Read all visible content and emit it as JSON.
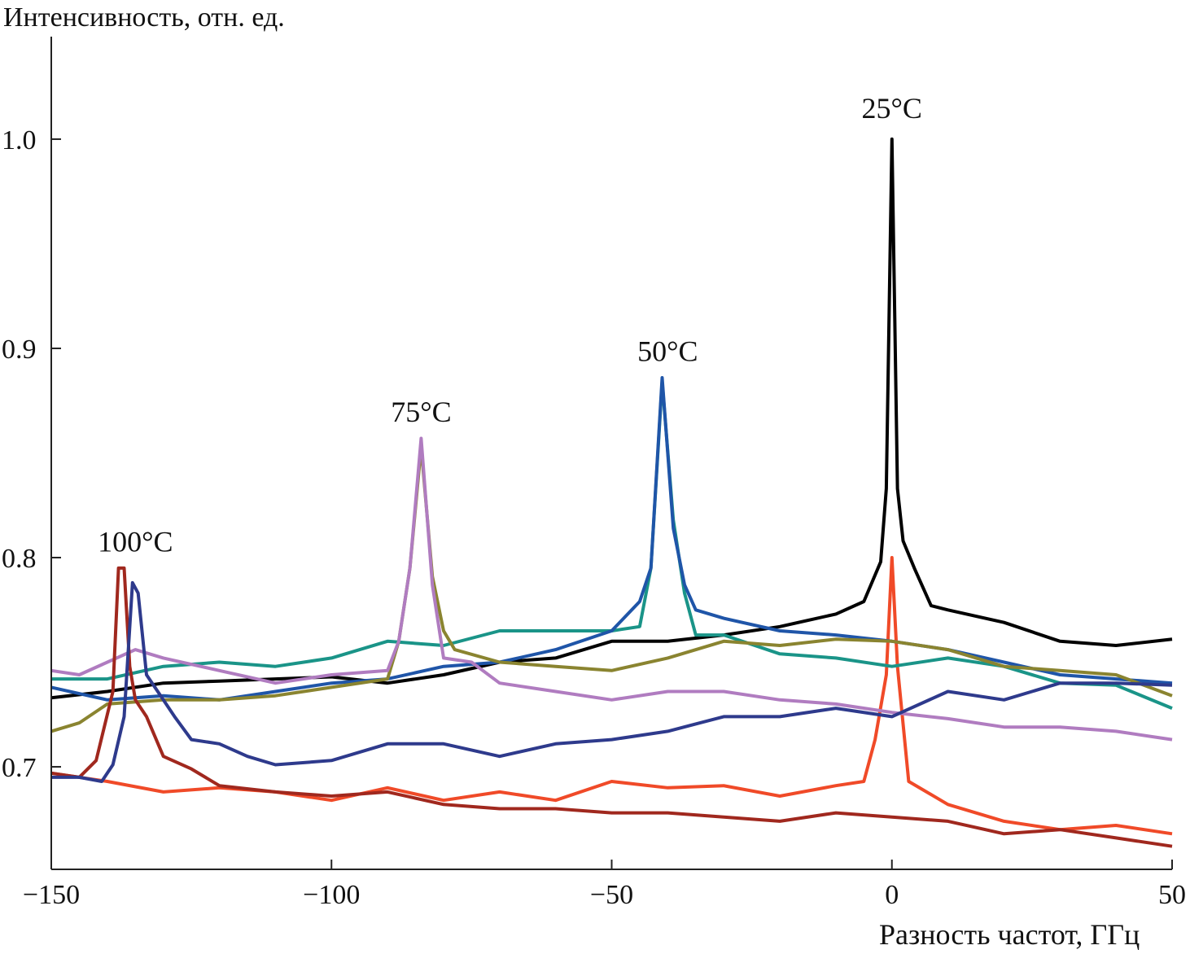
{
  "chart_data": {
    "type": "line",
    "title": "",
    "xlabel": "Разность частот, ГГц",
    "ylabel": "Интенсивность, отн. ед.",
    "xlim": [
      -150,
      50
    ],
    "ylim": [
      0.651,
      1.049
    ],
    "x_ticks": [
      -150,
      -100,
      -50,
      0,
      50
    ],
    "x_tick_labels": [
      "−150",
      "−100",
      "−50",
      "0",
      "50"
    ],
    "y_ticks": [
      0.7,
      0.8,
      0.9,
      1.0
    ],
    "y_tick_labels": [
      "0.7",
      "0.8",
      "0.9",
      "1.0"
    ],
    "grid": false,
    "annotations": [
      {
        "text": "100°C",
        "x": -135,
        "y": 0.803
      },
      {
        "text": "75°C",
        "x": -84,
        "y": 0.865
      },
      {
        "text": "50°C",
        "x": -40,
        "y": 0.894
      },
      {
        "text": "25°C",
        "x": 0,
        "y": 1.01
      }
    ],
    "series": [
      {
        "name": "25°C a",
        "color": "#000000",
        "x": [
          -150,
          -140,
          -130,
          -120,
          -110,
          -100,
          -90,
          -80,
          -70,
          -60,
          -50,
          -40,
          -30,
          -20,
          -10,
          -5,
          -2,
          -1,
          0,
          1,
          2,
          4,
          7,
          10,
          20,
          30,
          40,
          50
        ],
        "y": [
          0.733,
          0.736,
          0.74,
          0.741,
          0.742,
          0.743,
          0.74,
          0.744,
          0.75,
          0.752,
          0.76,
          0.76,
          0.763,
          0.767,
          0.773,
          0.779,
          0.798,
          0.833,
          1.0,
          0.833,
          0.808,
          0.795,
          0.777,
          0.775,
          0.769,
          0.76,
          0.758,
          0.761
        ]
      },
      {
        "name": "25°C b",
        "color": "#f04a28",
        "x": [
          -150,
          -140,
          -130,
          -120,
          -110,
          -100,
          -90,
          -80,
          -70,
          -60,
          -50,
          -40,
          -30,
          -20,
          -10,
          -5,
          -3,
          -1,
          0,
          1,
          3,
          10,
          20,
          30,
          40,
          50
        ],
        "y": [
          0.697,
          0.693,
          0.688,
          0.69,
          0.688,
          0.684,
          0.69,
          0.684,
          0.688,
          0.684,
          0.693,
          0.69,
          0.691,
          0.686,
          0.691,
          0.693,
          0.713,
          0.744,
          0.8,
          0.748,
          0.693,
          0.682,
          0.674,
          0.67,
          0.672,
          0.668
        ]
      },
      {
        "name": "50°C a",
        "color": "#1a9488",
        "x": [
          -150,
          -140,
          -130,
          -120,
          -110,
          -100,
          -90,
          -80,
          -70,
          -60,
          -50,
          -45,
          -43,
          -41,
          -39,
          -37,
          -35,
          -30,
          -20,
          -10,
          0,
          10,
          20,
          30,
          40,
          50
        ],
        "y": [
          0.742,
          0.742,
          0.748,
          0.75,
          0.748,
          0.752,
          0.76,
          0.758,
          0.765,
          0.765,
          0.765,
          0.767,
          0.795,
          0.884,
          0.818,
          0.783,
          0.763,
          0.763,
          0.754,
          0.752,
          0.748,
          0.752,
          0.748,
          0.74,
          0.739,
          0.728
        ]
      },
      {
        "name": "50°C b",
        "color": "#1f55a8",
        "x": [
          -150,
          -140,
          -130,
          -120,
          -110,
          -100,
          -90,
          -80,
          -70,
          -60,
          -50,
          -45,
          -43,
          -41,
          -39,
          -37,
          -35,
          -30,
          -20,
          -10,
          0,
          10,
          20,
          30,
          40,
          50
        ],
        "y": [
          0.738,
          0.732,
          0.734,
          0.732,
          0.736,
          0.74,
          0.742,
          0.748,
          0.75,
          0.756,
          0.765,
          0.779,
          0.795,
          0.886,
          0.814,
          0.787,
          0.775,
          0.771,
          0.765,
          0.763,
          0.76,
          0.756,
          0.75,
          0.744,
          0.742,
          0.74
        ]
      },
      {
        "name": "75°C a",
        "color": "#8a8430",
        "x": [
          -150,
          -145,
          -140,
          -130,
          -120,
          -110,
          -100,
          -90,
          -88,
          -86,
          -84,
          -82,
          -80,
          -78,
          -70,
          -60,
          -50,
          -40,
          -30,
          -20,
          -10,
          0,
          10,
          20,
          30,
          40,
          50
        ],
        "y": [
          0.717,
          0.721,
          0.73,
          0.732,
          0.732,
          0.734,
          0.738,
          0.742,
          0.76,
          0.795,
          0.853,
          0.791,
          0.765,
          0.756,
          0.75,
          0.748,
          0.746,
          0.752,
          0.76,
          0.758,
          0.761,
          0.76,
          0.756,
          0.748,
          0.746,
          0.744,
          0.734
        ]
      },
      {
        "name": "75°C b",
        "color": "#b07cc0",
        "x": [
          -150,
          -145,
          -140,
          -135,
          -130,
          -120,
          -110,
          -100,
          -90,
          -88,
          -86,
          -84,
          -82,
          -80,
          -75,
          -70,
          -60,
          -50,
          -40,
          -30,
          -20,
          -10,
          0,
          10,
          20,
          30,
          40,
          50
        ],
        "y": [
          0.746,
          0.744,
          0.75,
          0.756,
          0.752,
          0.746,
          0.74,
          0.744,
          0.746,
          0.76,
          0.795,
          0.857,
          0.787,
          0.752,
          0.75,
          0.74,
          0.736,
          0.732,
          0.736,
          0.736,
          0.732,
          0.73,
          0.726,
          0.723,
          0.719,
          0.719,
          0.717,
          0.713
        ]
      },
      {
        "name": "100°C a",
        "color": "#a0281e",
        "x": [
          -150,
          -145,
          -142,
          -139,
          -138,
          -137,
          -136,
          -135,
          -133,
          -130,
          -125,
          -120,
          -110,
          -100,
          -90,
          -80,
          -70,
          -60,
          -50,
          -40,
          -30,
          -20,
          -10,
          0,
          10,
          20,
          30,
          40,
          50
        ],
        "y": [
          0.697,
          0.695,
          0.703,
          0.736,
          0.795,
          0.795,
          0.748,
          0.732,
          0.724,
          0.705,
          0.699,
          0.691,
          0.688,
          0.686,
          0.688,
          0.682,
          0.68,
          0.68,
          0.678,
          0.678,
          0.676,
          0.674,
          0.678,
          0.676,
          0.674,
          0.668,
          0.67,
          0.666,
          0.662
        ]
      },
      {
        "name": "100°C b",
        "color": "#2e3a8c",
        "x": [
          -150,
          -145,
          -141,
          -139,
          -137,
          -135.5,
          -134.5,
          -133,
          -131,
          -128,
          -125,
          -120,
          -115,
          -110,
          -100,
          -90,
          -80,
          -70,
          -60,
          -50,
          -40,
          -30,
          -20,
          -10,
          0,
          10,
          20,
          30,
          40,
          50
        ],
        "y": [
          0.695,
          0.695,
          0.693,
          0.701,
          0.724,
          0.788,
          0.783,
          0.744,
          0.736,
          0.724,
          0.713,
          0.711,
          0.705,
          0.701,
          0.703,
          0.711,
          0.711,
          0.705,
          0.711,
          0.713,
          0.717,
          0.724,
          0.724,
          0.728,
          0.724,
          0.736,
          0.732,
          0.74,
          0.74,
          0.739
        ]
      }
    ]
  }
}
